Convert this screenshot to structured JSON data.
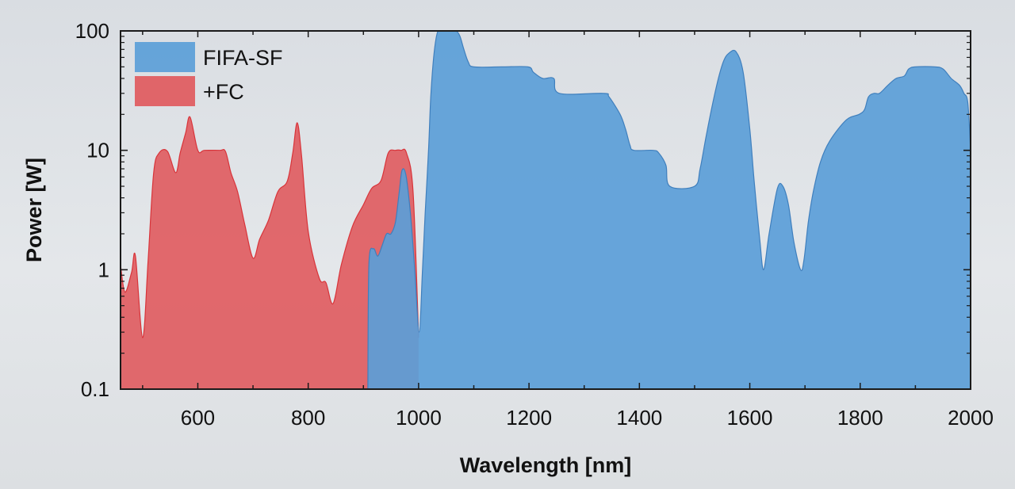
{
  "chart_data": {
    "type": "area",
    "xlabel": "Wavelength [nm]",
    "ylabel": "Power [W]",
    "xlim": [
      460,
      2000
    ],
    "ylim": [
      0.1,
      100
    ],
    "yscale": "log",
    "x_ticks": [
      600,
      800,
      1000,
      1200,
      1400,
      1600,
      1800,
      2000
    ],
    "y_ticks": [
      0.1,
      1,
      10,
      100
    ],
    "y_tick_labels": [
      "0.1",
      "1",
      "10",
      "100"
    ],
    "legend_position": "top-left",
    "grid": false,
    "series": [
      {
        "name": "+FC",
        "color": "#e05a5e",
        "x": [
          460,
          468,
          480,
          487,
          500,
          510,
          520,
          530,
          545,
          560,
          568,
          578,
          586,
          600,
          612,
          640,
          650,
          660,
          672,
          685,
          700,
          712,
          728,
          745,
          762,
          772,
          780,
          788,
          800,
          820,
          832,
          845,
          860,
          880,
          900,
          915,
          932,
          945,
          958,
          968,
          978,
          990,
          1000
        ],
        "y": [
          1.1,
          0.65,
          0.95,
          1.3,
          0.27,
          1.2,
          6.5,
          9.5,
          9.8,
          6.5,
          9.5,
          14,
          19,
          10,
          10,
          10,
          9.8,
          6.5,
          4.5,
          2.4,
          1.25,
          1.8,
          2.6,
          4.5,
          5.5,
          9.5,
          17,
          9,
          2.1,
          0.85,
          0.78,
          0.52,
          1.1,
          2.3,
          3.5,
          4.8,
          5.6,
          9.5,
          10,
          10,
          9.5,
          4.5,
          0.27
        ]
      },
      {
        "name": "FIFA-SF",
        "color": "#5b9ed8",
        "x": [
          908,
          910,
          918,
          926,
          934,
          942,
          950,
          958,
          965,
          970,
          977,
          985,
          993,
          1001,
          1007,
          1012,
          1018,
          1022,
          1028,
          1035,
          1045,
          1058,
          1068,
          1075,
          1082,
          1090,
          1100,
          1150,
          1198,
          1208,
          1225,
          1245,
          1255,
          1335,
          1345,
          1365,
          1375,
          1383,
          1390,
          1425,
          1435,
          1448,
          1455,
          1500,
          1510,
          1522,
          1540,
          1552,
          1562,
          1575,
          1588,
          1600,
          1608,
          1618,
          1625,
          1635,
          1650,
          1660,
          1670,
          1680,
          1692,
          1698,
          1706,
          1715,
          1728,
          1745,
          1775,
          1798,
          1808,
          1815,
          1825,
          1835,
          1850,
          1865,
          1880,
          1888,
          1900,
          1935,
          1950,
          1965,
          1980,
          1988,
          1995,
          2000
        ],
        "y": [
          0.1,
          1.1,
          1.5,
          1.3,
          1.6,
          2.0,
          2.0,
          2.5,
          4.5,
          6.8,
          6.2,
          3.0,
          1.0,
          0.3,
          1.0,
          3.0,
          10,
          28,
          65,
          100,
          100,
          100,
          100,
          90,
          70,
          55,
          50,
          50,
          50,
          45,
          40,
          40,
          30,
          30,
          28,
          20,
          15,
          11,
          10,
          10,
          9.5,
          7.5,
          5,
          5,
          7,
          14,
          35,
          55,
          65,
          67,
          45,
          15,
          5.5,
          1.8,
          1.0,
          2.0,
          4.8,
          5,
          3.5,
          1.7,
          1.0,
          1.2,
          2.5,
          4.5,
          8,
          12,
          18,
          20,
          22,
          28,
          30,
          30,
          35,
          40,
          42,
          48,
          50,
          50,
          48,
          40,
          35,
          30,
          25,
          10
        ]
      }
    ]
  }
}
